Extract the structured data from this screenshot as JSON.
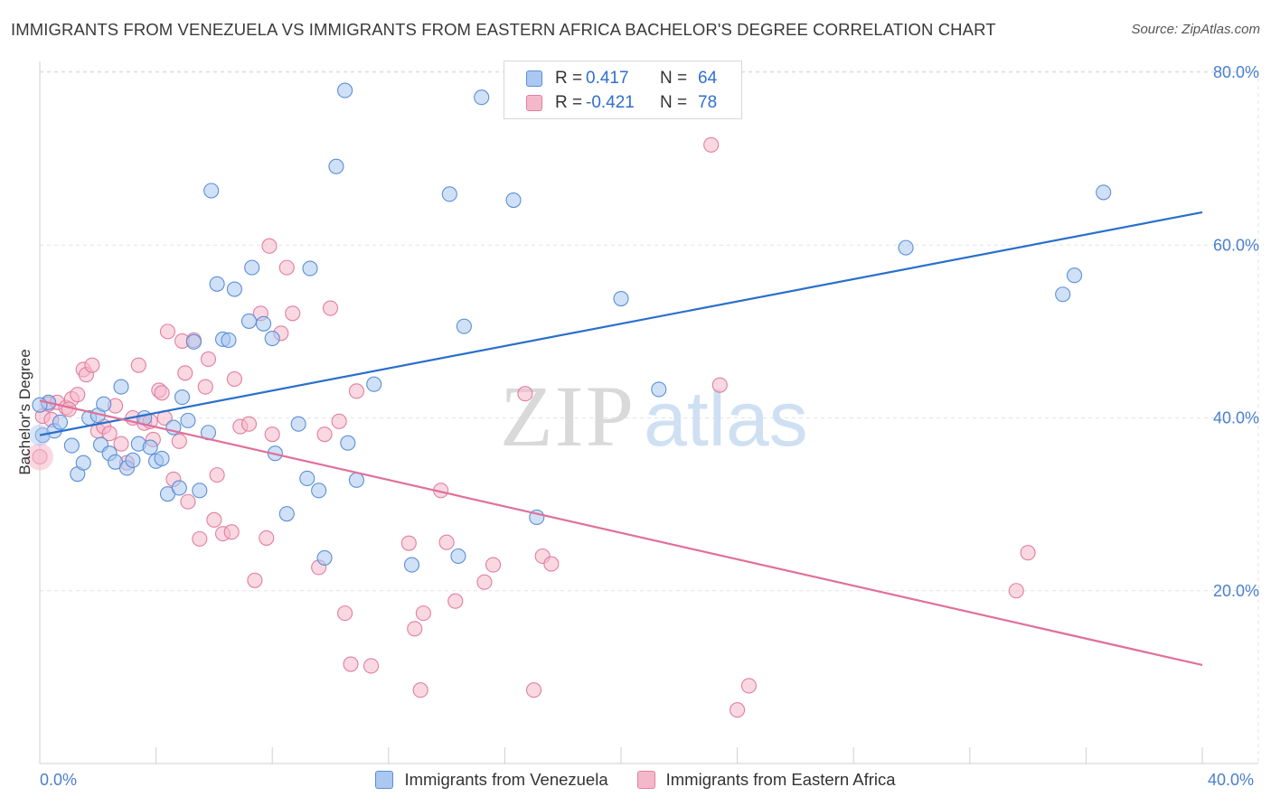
{
  "header": {
    "title": "IMMIGRANTS FROM VENEZUELA VS IMMIGRANTS FROM EASTERN AFRICA BACHELOR'S DEGREE CORRELATION CHART",
    "source": "Source: ZipAtlas.com"
  },
  "watermark": {
    "part1": "ZIP",
    "part2": "atlas"
  },
  "legend": {
    "rows": [
      {
        "r_label": "R =",
        "r_value": "0.417",
        "n_label": "N =",
        "n_value": "64"
      },
      {
        "r_label": "R =",
        "r_value": "-0.421",
        "n_label": "N =",
        "n_value": "78"
      }
    ]
  },
  "bottom_legend": {
    "items": [
      "Immigrants from Venezuela",
      "Immigrants from Eastern Africa"
    ]
  },
  "colors": {
    "series_a_fill": "#aac8f0",
    "series_a_stroke": "#5b8fd6",
    "series_a_line": "#2a6fcc",
    "series_b_fill": "#f5b8cb",
    "series_b_stroke": "#e07fa0",
    "series_b_line": "#e0709a",
    "value_text": "#2f6fd0",
    "tick_text": "#4a7fcf",
    "grid": "#e3e3e3"
  },
  "chart_data": {
    "type": "scatter",
    "xlabel": "",
    "ylabel": "Bachelor's Degree",
    "xlim": [
      0,
      40
    ],
    "ylim": [
      0,
      80
    ],
    "x_ticks": [
      "0.0%",
      "40.0%"
    ],
    "y_ticks": [
      "20.0%",
      "40.0%",
      "60.0%",
      "80.0%"
    ],
    "y_tick_values": [
      20,
      40,
      60,
      80
    ],
    "grid": true,
    "legend_position": "top-center",
    "series": [
      {
        "name": "Immigrants from Venezuela",
        "trend": {
          "x": [
            0,
            40
          ],
          "y": [
            38.0,
            63.8
          ]
        },
        "points": [
          [
            0.1,
            38.0
          ],
          [
            0.3,
            41.8
          ],
          [
            0.5,
            38.5
          ],
          [
            0.7,
            39.5
          ],
          [
            1.1,
            36.8
          ],
          [
            1.3,
            33.5
          ],
          [
            1.5,
            34.8
          ],
          [
            1.7,
            40.0
          ],
          [
            2.0,
            40.3
          ],
          [
            2.1,
            36.9
          ],
          [
            2.2,
            41.6
          ],
          [
            2.4,
            35.9
          ],
          [
            2.6,
            34.9
          ],
          [
            2.8,
            43.6
          ],
          [
            3.0,
            34.2
          ],
          [
            3.2,
            35.1
          ],
          [
            3.4,
            37.0
          ],
          [
            3.6,
            40.0
          ],
          [
            3.8,
            36.6
          ],
          [
            4.0,
            35.0
          ],
          [
            4.2,
            35.3
          ],
          [
            4.4,
            31.2
          ],
          [
            4.6,
            38.9
          ],
          [
            4.8,
            31.9
          ],
          [
            4.9,
            42.4
          ],
          [
            5.1,
            39.7
          ],
          [
            5.3,
            48.8
          ],
          [
            5.5,
            31.6
          ],
          [
            5.8,
            38.3
          ],
          [
            5.9,
            66.3
          ],
          [
            6.1,
            55.5
          ],
          [
            6.3,
            49.1
          ],
          [
            6.5,
            49.0
          ],
          [
            6.7,
            54.9
          ],
          [
            7.2,
            51.2
          ],
          [
            7.3,
            57.4
          ],
          [
            7.7,
            50.9
          ],
          [
            8.0,
            49.2
          ],
          [
            8.1,
            35.9
          ],
          [
            8.5,
            28.9
          ],
          [
            8.9,
            39.3
          ],
          [
            9.2,
            33.0
          ],
          [
            9.3,
            57.3
          ],
          [
            9.6,
            31.6
          ],
          [
            9.8,
            23.8
          ],
          [
            10.2,
            69.1
          ],
          [
            10.5,
            77.9
          ],
          [
            10.6,
            37.1
          ],
          [
            10.9,
            32.8
          ],
          [
            11.5,
            43.9
          ],
          [
            12.8,
            23.0
          ],
          [
            14.1,
            65.9
          ],
          [
            14.4,
            24.0
          ],
          [
            14.6,
            50.6
          ],
          [
            15.2,
            77.1
          ],
          [
            16.3,
            65.2
          ],
          [
            17.1,
            28.5
          ],
          [
            20.0,
            53.8
          ],
          [
            21.3,
            43.3
          ],
          [
            29.8,
            59.7
          ],
          [
            35.2,
            54.3
          ],
          [
            35.6,
            56.5
          ],
          [
            36.6,
            66.1
          ],
          [
            0.0,
            41.5
          ]
        ]
      },
      {
        "name": "Immigrants from Eastern Africa",
        "trend": {
          "x": [
            0,
            40
          ],
          "y": [
            42.0,
            11.4
          ]
        },
        "points": [
          [
            0.0,
            35.5
          ],
          [
            0.1,
            40.2
          ],
          [
            0.3,
            41.6
          ],
          [
            0.6,
            41.8
          ],
          [
            0.9,
            41.2
          ],
          [
            1.1,
            42.2
          ],
          [
            1.3,
            42.7
          ],
          [
            1.5,
            45.6
          ],
          [
            1.6,
            45.0
          ],
          [
            1.8,
            46.1
          ],
          [
            2.0,
            38.5
          ],
          [
            2.2,
            39.0
          ],
          [
            2.4,
            38.2
          ],
          [
            2.6,
            41.4
          ],
          [
            2.8,
            37.0
          ],
          [
            3.0,
            34.8
          ],
          [
            3.2,
            40.0
          ],
          [
            3.4,
            46.1
          ],
          [
            3.6,
            39.4
          ],
          [
            3.8,
            39.6
          ],
          [
            3.9,
            37.5
          ],
          [
            4.1,
            43.2
          ],
          [
            4.2,
            42.9
          ],
          [
            4.3,
            40.0
          ],
          [
            4.4,
            50.0
          ],
          [
            4.6,
            32.9
          ],
          [
            4.8,
            37.3
          ],
          [
            4.9,
            48.9
          ],
          [
            5.0,
            45.2
          ],
          [
            5.1,
            30.3
          ],
          [
            5.3,
            49.0
          ],
          [
            5.5,
            26.0
          ],
          [
            5.7,
            43.6
          ],
          [
            5.8,
            46.8
          ],
          [
            6.0,
            28.2
          ],
          [
            6.1,
            33.4
          ],
          [
            6.3,
            26.6
          ],
          [
            6.6,
            26.8
          ],
          [
            6.7,
            44.5
          ],
          [
            6.9,
            39.0
          ],
          [
            7.2,
            39.3
          ],
          [
            7.4,
            21.2
          ],
          [
            7.6,
            52.1
          ],
          [
            7.8,
            26.1
          ],
          [
            7.9,
            59.9
          ],
          [
            8.0,
            38.1
          ],
          [
            8.3,
            49.8
          ],
          [
            8.5,
            57.4
          ],
          [
            8.7,
            52.1
          ],
          [
            9.6,
            22.7
          ],
          [
            9.8,
            38.1
          ],
          [
            10.0,
            52.7
          ],
          [
            10.3,
            39.6
          ],
          [
            10.5,
            17.4
          ],
          [
            10.7,
            11.5
          ],
          [
            10.9,
            43.1
          ],
          [
            11.4,
            11.3
          ],
          [
            12.7,
            25.5
          ],
          [
            12.9,
            15.6
          ],
          [
            13.1,
            8.5
          ],
          [
            13.2,
            17.4
          ],
          [
            13.8,
            31.6
          ],
          [
            14.0,
            25.6
          ],
          [
            14.3,
            18.8
          ],
          [
            15.3,
            21.0
          ],
          [
            15.6,
            23.0
          ],
          [
            17.0,
            8.5
          ],
          [
            17.3,
            24.0
          ],
          [
            17.6,
            23.1
          ],
          [
            16.7,
            42.8
          ],
          [
            23.1,
            71.6
          ],
          [
            23.4,
            43.8
          ],
          [
            24.0,
            6.2
          ],
          [
            24.4,
            9.0
          ],
          [
            33.6,
            20.0
          ],
          [
            34.0,
            24.4
          ],
          [
            0.4,
            39.8
          ],
          [
            1.0,
            41.0
          ]
        ]
      }
    ]
  }
}
